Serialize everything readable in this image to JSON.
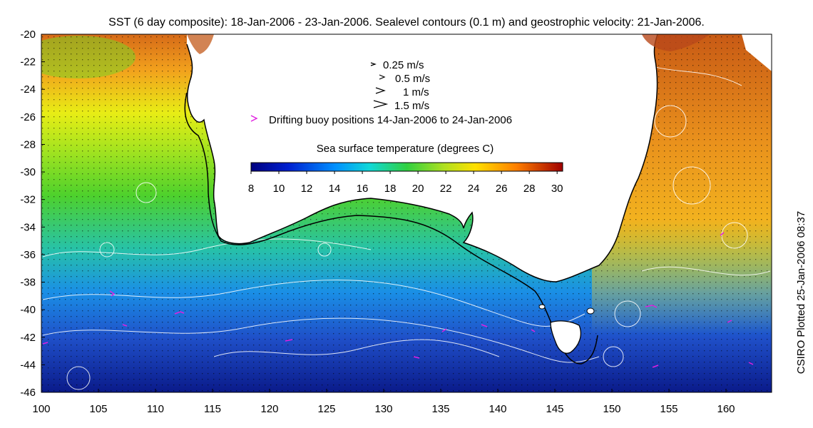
{
  "title": "SST (6 day composite): 18-Jan-2006 - 23-Jan-2006. Sealevel contours (0.1 m) and geostrophic velocity: 21-Jan-2006.",
  "credit": "CSIRO Plotted 25-Jan-2006 08:37",
  "legend": {
    "speeds": [
      "0.25 m/s",
      "0.5 m/s",
      "1 m/s",
      "1.5 m/s"
    ],
    "drifters": "Drifting buoy positions 14-Jan-2006 to 24-Jan-2006",
    "colorbar_title": "Sea surface temperature (degrees C)",
    "colorbar_ticks": [
      "8",
      "10",
      "12",
      "14",
      "16",
      "18",
      "20",
      "22",
      "24",
      "26",
      "28",
      "30"
    ]
  },
  "axes": {
    "x_ticks": [
      "100",
      "105",
      "110",
      "115",
      "120",
      "125",
      "130",
      "135",
      "140",
      "145",
      "150",
      "155",
      "160"
    ],
    "y_ticks": [
      "-20",
      "-22",
      "-24",
      "-26",
      "-28",
      "-30",
      "-32",
      "-34",
      "-36",
      "-38",
      "-40",
      "-42",
      "-44",
      "-46"
    ]
  },
  "colors": {
    "drifter": "#e020e0",
    "land": "#ffffff",
    "coast": "#000000",
    "contour": "#ffffff"
  }
}
